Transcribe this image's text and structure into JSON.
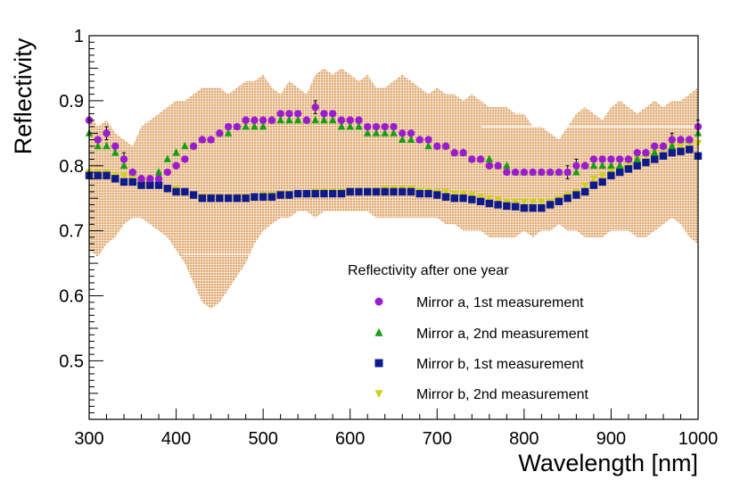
{
  "chart_data": {
    "type": "scatter",
    "title": "",
    "xlabel": "Wavelength [nm]",
    "ylabel": "Reflectivity",
    "xlim": [
      300,
      1000
    ],
    "ylim": [
      0.41,
      1.0
    ],
    "x_ticks": [
      300,
      400,
      500,
      600,
      700,
      800,
      900,
      1000
    ],
    "x_tick_labels": [
      "300",
      "400",
      "500",
      "600",
      "700",
      "800",
      "900",
      "1000"
    ],
    "y_ticks": [
      0.5,
      0.6,
      0.7,
      0.8,
      0.9,
      1.0
    ],
    "y_tick_labels": [
      "0.5",
      "0.6",
      "0.7",
      "0.8",
      "0.9",
      "1"
    ],
    "grid": false,
    "legend": {
      "title": "Reflectivity after one year",
      "position": "bottom-right"
    },
    "x": [
      300,
      310,
      320,
      330,
      340,
      350,
      360,
      370,
      380,
      390,
      400,
      410,
      420,
      430,
      440,
      450,
      460,
      470,
      480,
      490,
      500,
      510,
      520,
      530,
      540,
      550,
      560,
      570,
      580,
      590,
      600,
      610,
      620,
      630,
      640,
      650,
      660,
      670,
      680,
      690,
      700,
      710,
      720,
      730,
      740,
      750,
      760,
      770,
      780,
      790,
      800,
      810,
      820,
      830,
      840,
      850,
      860,
      870,
      880,
      890,
      900,
      910,
      920,
      930,
      940,
      950,
      960,
      970,
      980,
      990,
      1000
    ],
    "series": [
      {
        "name": "Mirror a, 1st measurement",
        "marker": "circle",
        "color": "#9b1bd1",
        "values": [
          0.87,
          0.84,
          0.85,
          0.83,
          0.81,
          0.79,
          0.78,
          0.78,
          0.78,
          0.79,
          0.8,
          0.81,
          0.83,
          0.84,
          0.84,
          0.85,
          0.86,
          0.86,
          0.87,
          0.87,
          0.87,
          0.87,
          0.88,
          0.88,
          0.88,
          0.87,
          0.89,
          0.88,
          0.88,
          0.87,
          0.87,
          0.87,
          0.86,
          0.86,
          0.86,
          0.86,
          0.85,
          0.85,
          0.84,
          0.84,
          0.83,
          0.83,
          0.82,
          0.82,
          0.81,
          0.81,
          0.8,
          0.8,
          0.79,
          0.79,
          0.79,
          0.79,
          0.79,
          0.79,
          0.79,
          0.79,
          0.8,
          0.8,
          0.81,
          0.81,
          0.81,
          0.81,
          0.81,
          0.82,
          0.82,
          0.83,
          0.83,
          0.84,
          0.84,
          0.84,
          0.86
        ]
      },
      {
        "name": "Mirror a, 2nd measurement",
        "marker": "triangle-up",
        "color": "#13a013",
        "values": [
          0.85,
          0.83,
          0.83,
          0.82,
          0.8,
          0.79,
          0.78,
          0.78,
          0.79,
          0.81,
          0.82,
          0.83,
          0.83,
          0.84,
          0.84,
          0.85,
          0.85,
          0.86,
          0.86,
          0.86,
          0.86,
          0.87,
          0.87,
          0.87,
          0.87,
          0.87,
          0.87,
          0.87,
          0.87,
          0.86,
          0.86,
          0.86,
          0.85,
          0.85,
          0.85,
          0.85,
          0.84,
          0.84,
          0.84,
          0.83,
          0.83,
          0.83,
          0.82,
          0.82,
          0.81,
          0.81,
          0.81,
          0.8,
          0.8,
          0.79,
          0.79,
          0.79,
          0.79,
          0.79,
          0.79,
          0.79,
          0.79,
          0.8,
          0.8,
          0.8,
          0.8,
          0.8,
          0.81,
          0.81,
          0.82,
          0.82,
          0.83,
          0.83,
          0.84,
          0.84,
          0.85
        ]
      },
      {
        "name": "Mirror b, 1st measurement",
        "marker": "square",
        "color": "#0c1a8c",
        "values": [
          0.785,
          0.785,
          0.785,
          0.78,
          0.775,
          0.775,
          0.77,
          0.77,
          0.77,
          0.765,
          0.76,
          0.76,
          0.755,
          0.75,
          0.75,
          0.75,
          0.75,
          0.75,
          0.75,
          0.752,
          0.752,
          0.752,
          0.755,
          0.755,
          0.757,
          0.757,
          0.757,
          0.757,
          0.757,
          0.757,
          0.76,
          0.76,
          0.76,
          0.76,
          0.76,
          0.76,
          0.76,
          0.76,
          0.757,
          0.757,
          0.755,
          0.752,
          0.75,
          0.75,
          0.748,
          0.745,
          0.742,
          0.74,
          0.738,
          0.737,
          0.735,
          0.735,
          0.735,
          0.74,
          0.745,
          0.75,
          0.755,
          0.76,
          0.77,
          0.775,
          0.785,
          0.79,
          0.795,
          0.8,
          0.805,
          0.81,
          0.815,
          0.82,
          0.822,
          0.825,
          0.815
        ]
      },
      {
        "name": "Mirror b, 2nd measurement",
        "marker": "triangle-down",
        "color": "#cfd21a",
        "values": [
          0.79,
          0.79,
          0.79,
          0.785,
          0.785,
          0.78,
          0.775,
          0.775,
          0.77,
          0.765,
          0.765,
          0.76,
          0.755,
          0.752,
          0.752,
          0.752,
          0.752,
          0.752,
          0.752,
          0.752,
          0.755,
          0.755,
          0.757,
          0.757,
          0.757,
          0.757,
          0.76,
          0.76,
          0.76,
          0.76,
          0.762,
          0.762,
          0.762,
          0.762,
          0.765,
          0.765,
          0.765,
          0.765,
          0.762,
          0.762,
          0.76,
          0.76,
          0.757,
          0.757,
          0.755,
          0.752,
          0.75,
          0.748,
          0.745,
          0.745,
          0.745,
          0.745,
          0.745,
          0.745,
          0.75,
          0.755,
          0.76,
          0.77,
          0.78,
          0.785,
          0.79,
          0.795,
          0.8,
          0.81,
          0.815,
          0.82,
          0.825,
          0.83,
          0.83,
          0.832,
          0.835
        ]
      }
    ],
    "band": {
      "description": "uncertainty band",
      "color": "#dfa56b",
      "x": [
        300,
        310,
        320,
        330,
        340,
        350,
        360,
        370,
        380,
        390,
        400,
        410,
        420,
        430,
        440,
        450,
        460,
        470,
        480,
        490,
        500,
        510,
        520,
        530,
        540,
        550,
        560,
        570,
        580,
        590,
        600,
        610,
        620,
        630,
        640,
        650,
        660,
        670,
        680,
        690,
        700,
        710,
        720,
        730,
        740,
        750,
        760,
        770,
        780,
        790,
        800,
        810,
        820,
        830,
        840,
        850,
        860,
        870,
        880,
        890,
        900,
        910,
        920,
        930,
        940,
        950,
        960,
        970,
        980,
        990,
        1000
      ],
      "upper": [
        0.88,
        0.86,
        0.87,
        0.85,
        0.84,
        0.83,
        0.86,
        0.87,
        0.88,
        0.89,
        0.9,
        0.9,
        0.91,
        0.92,
        0.92,
        0.92,
        0.91,
        0.92,
        0.93,
        0.93,
        0.94,
        0.92,
        0.91,
        0.93,
        0.92,
        0.91,
        0.94,
        0.95,
        0.94,
        0.95,
        0.94,
        0.93,
        0.94,
        0.92,
        0.92,
        0.93,
        0.94,
        0.93,
        0.92,
        0.91,
        0.92,
        0.91,
        0.91,
        0.9,
        0.91,
        0.9,
        0.89,
        0.89,
        0.89,
        0.88,
        0.88,
        0.86,
        0.86,
        0.85,
        0.84,
        0.86,
        0.88,
        0.89,
        0.88,
        0.87,
        0.89,
        0.9,
        0.89,
        0.88,
        0.89,
        0.9,
        0.89,
        0.9,
        0.9,
        0.91,
        0.92
      ],
      "lower": [
        0.67,
        0.66,
        0.68,
        0.69,
        0.71,
        0.72,
        0.72,
        0.71,
        0.7,
        0.69,
        0.67,
        0.65,
        0.62,
        0.59,
        0.58,
        0.59,
        0.61,
        0.63,
        0.65,
        0.68,
        0.7,
        0.71,
        0.72,
        0.72,
        0.73,
        0.73,
        0.72,
        0.73,
        0.73,
        0.73,
        0.73,
        0.73,
        0.73,
        0.72,
        0.72,
        0.72,
        0.72,
        0.72,
        0.72,
        0.72,
        0.72,
        0.71,
        0.71,
        0.7,
        0.7,
        0.7,
        0.69,
        0.69,
        0.69,
        0.69,
        0.7,
        0.69,
        0.7,
        0.7,
        0.71,
        0.7,
        0.7,
        0.69,
        0.69,
        0.69,
        0.7,
        0.7,
        0.7,
        0.69,
        0.69,
        0.7,
        0.71,
        0.72,
        0.71,
        0.69,
        0.68
      ]
    },
    "error_bars": [
      {
        "series": 0,
        "x": 320,
        "err": 0.01
      },
      {
        "series": 0,
        "x": 340,
        "err": 0.01
      },
      {
        "series": 0,
        "x": 560,
        "err": 0.01
      },
      {
        "series": 0,
        "x": 850,
        "err": 0.01
      },
      {
        "series": 0,
        "x": 860,
        "err": 0.01
      },
      {
        "series": 0,
        "x": 970,
        "err": 0.01
      },
      {
        "series": 0,
        "x": 1000,
        "err": 0.01
      }
    ]
  }
}
